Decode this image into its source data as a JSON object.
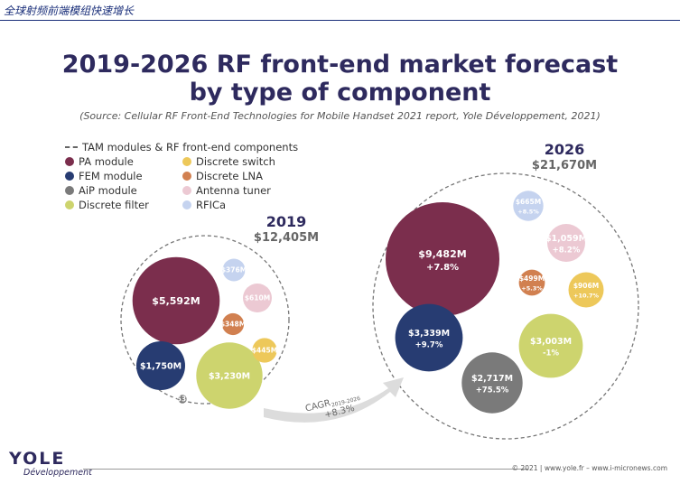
{
  "header": {
    "chinese_title": "全球射频前端模组快速增长"
  },
  "chart_data": {
    "type": "bubble",
    "title_line1": "2019-2026 RF front-end market forecast",
    "title_line2": "by type of component",
    "source": "(Source: Cellular RF Front-End Technologies for Mobile Handset 2021 report, Yole Développement, 2021)",
    "legend": [
      {
        "key": "tam",
        "label": "TAM modules & RF front-end components",
        "style": "dashed",
        "color": "#666666"
      },
      {
        "key": "pa",
        "label": "PA module",
        "color": "#7b2e4d"
      },
      {
        "key": "fem",
        "label": "FEM module",
        "color": "#273c72"
      },
      {
        "key": "aip",
        "label": "AiP module",
        "color": "#7a7a7a"
      },
      {
        "key": "filter",
        "label": "Discrete filter",
        "color": "#cdd46e"
      },
      {
        "key": "switch",
        "label": "Discrete switch",
        "color": "#edc85a"
      },
      {
        "key": "lna",
        "label": "Discrete LNA",
        "color": "#d18050"
      },
      {
        "key": "tuner",
        "label": "Antenna tuner",
        "color": "#ecc9d3"
      },
      {
        "key": "rfica",
        "label": "RFICa",
        "color": "#c5d3ef"
      }
    ],
    "years": [
      {
        "year": "2019",
        "total": "$12,405M",
        "bubbles": [
          {
            "key": "pa",
            "label": "$5,592M",
            "value": 5592
          },
          {
            "key": "fem",
            "label": "$1,750M",
            "value": 1750
          },
          {
            "key": "filter",
            "label": "$3,230M",
            "value": 3230
          },
          {
            "key": "aip",
            "label": "$53M",
            "value": 53
          },
          {
            "key": "lna",
            "label": "$348M",
            "value": 348
          },
          {
            "key": "switch",
            "label": "$445M",
            "value": 445
          },
          {
            "key": "tuner",
            "label": "$610M",
            "value": 610
          },
          {
            "key": "rfica",
            "label": "$376M",
            "value": 376
          }
        ]
      },
      {
        "year": "2026",
        "total": "$21,670M",
        "bubbles": [
          {
            "key": "pa",
            "label": "$9,482M",
            "growth": "+7.8%",
            "value": 9482
          },
          {
            "key": "fem",
            "label": "$3,339M",
            "growth": "+9.7%",
            "value": 3339
          },
          {
            "key": "aip",
            "label": "$2,717M",
            "growth": "+75.5%",
            "value": 2717
          },
          {
            "key": "filter",
            "label": "$3,003M",
            "growth": "-1%",
            "value": 3003
          },
          {
            "key": "switch",
            "label": "$906M",
            "growth": "+10.7%",
            "value": 906
          },
          {
            "key": "lna",
            "label": "$499M",
            "growth": "+5.3%",
            "value": 499
          },
          {
            "key": "tuner",
            "label": "$1,059M",
            "growth": "+8.2%",
            "value": 1059
          },
          {
            "key": "rfica",
            "label": "$665M",
            "growth": "+8.5%",
            "value": 665
          }
        ]
      }
    ],
    "cagr": {
      "label": "CAGR",
      "period": "2019-2026",
      "value": "+8.3%"
    }
  },
  "footer": {
    "logo": "YOLE",
    "logo_sub": "Développement",
    "copyright": "© 2021 | www.yole.fr – www.i-micronews.com"
  }
}
